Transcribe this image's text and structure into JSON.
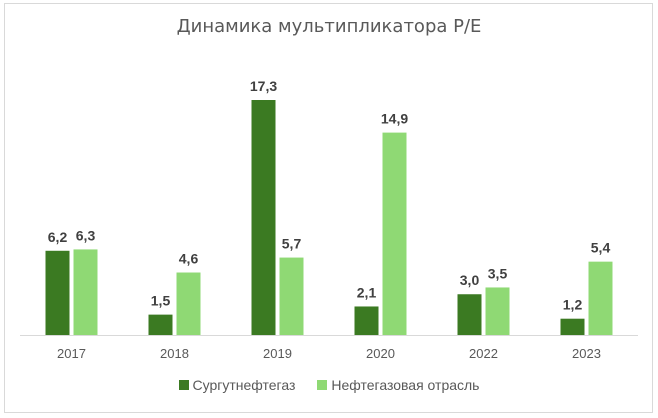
{
  "chart_data": {
    "type": "bar",
    "title": "Динамика мультипликатора P/E",
    "xlabel": "",
    "ylabel": "",
    "categories": [
      "2017",
      "2018",
      "2019",
      "2020",
      "2022",
      "2023"
    ],
    "series": [
      {
        "name": "Сургутнефтегаз",
        "color": "#3b7a22",
        "values": [
          6.2,
          1.5,
          17.3,
          2.1,
          3.0,
          1.2
        ],
        "labels": [
          "6,2",
          "1,5",
          "17,3",
          "2,1",
          "3,0",
          "1,2"
        ]
      },
      {
        "name": "Нефтегазовая отрасль",
        "color": "#8fd974",
        "values": [
          6.3,
          4.6,
          5.7,
          14.9,
          3.5,
          5.4
        ],
        "labels": [
          "6,3",
          "4,6",
          "5,7",
          "14,9",
          "3,5",
          "5,4"
        ]
      }
    ],
    "ylim": [
      0,
      17.3
    ],
    "grid": false,
    "legend_position": "bottom",
    "data_labels": true
  },
  "title": "Динамика мультипликатора P/E",
  "legend": [
    {
      "label": "Сургутнефтегаз",
      "color": "#3b7a22"
    },
    {
      "label": "Нефтегазовая отрасль",
      "color": "#8fd974"
    }
  ]
}
